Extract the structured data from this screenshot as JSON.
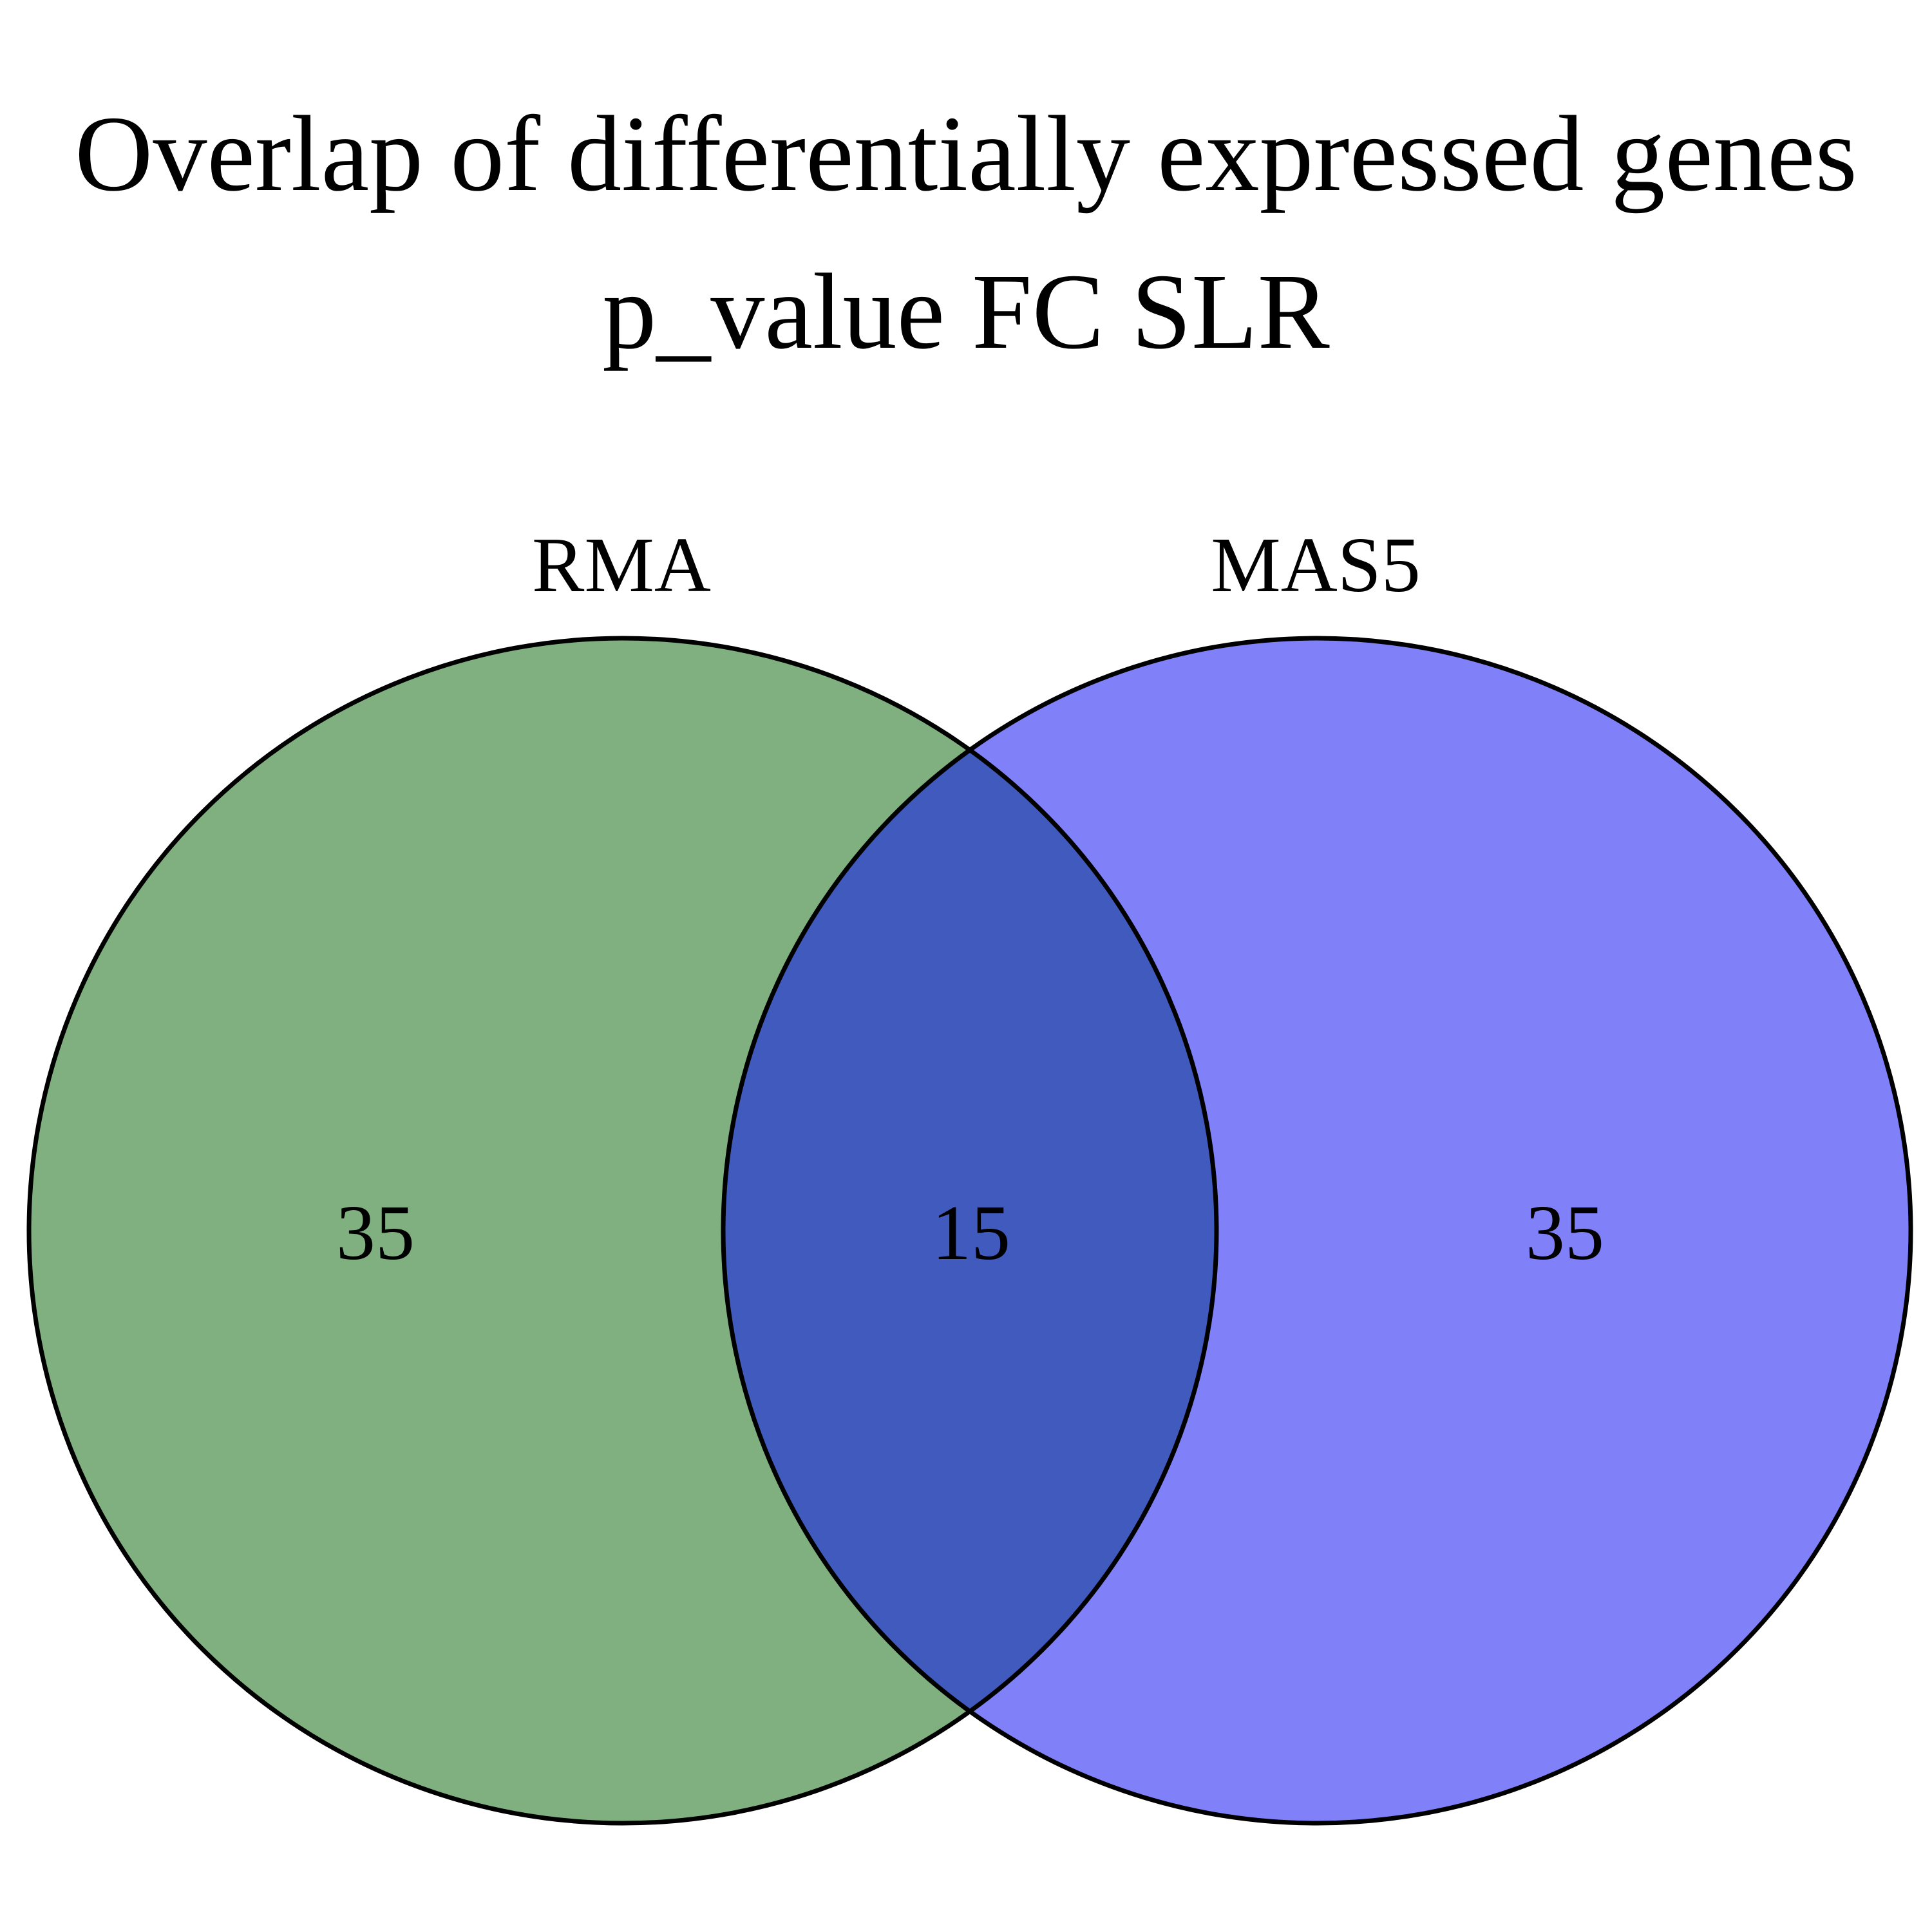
{
  "title": {
    "line1": "Overlap of differentially expressed genes",
    "line2": "p_value FC SLR"
  },
  "sets": [
    {
      "name": "RMA",
      "only_count": "35",
      "color": "#80b080"
    },
    {
      "name": "MAS5",
      "only_count": "35",
      "color": "#8080f9"
    }
  ],
  "intersection": {
    "count": "15",
    "color": "#415abd"
  },
  "outline_color": "#000000"
}
